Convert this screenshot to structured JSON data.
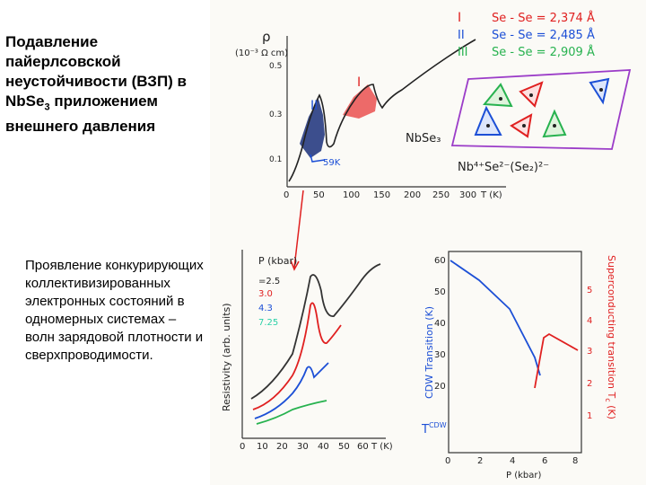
{
  "slide": {
    "title_main": "Подавление пайерлсовской неустойчивости (ВЗП) в NbSe",
    "title_sub": "3",
    "title_tail": " приложением внешнего давления",
    "body": "Проявление конкурирующих коллективизированных электронных состояний в одномерных системах – волн зарядовой плотности и сверхпроводимости."
  },
  "colors": {
    "red": "#e02020",
    "blue": "#1c4fd6",
    "dark": "#222222",
    "green": "#27b24f",
    "cyan": "#2bd0a8",
    "purple": "#9b3cc8",
    "paper": "#fbfaf6"
  },
  "top_figure": {
    "y_label": "ρ",
    "y_unit": "(10⁻³ Ω cm)",
    "y_ticks": [
      "0.5",
      "0.3",
      "0.1"
    ],
    "x_ticks": [
      "0",
      "50",
      "100",
      "150",
      "200",
      "250",
      "300"
    ],
    "x_label": "T (K)",
    "transition_I": "I",
    "transition_II": "II",
    "t_59k": "59K",
    "compound": "NbSe₃",
    "bonds": [
      {
        "roman": "I",
        "text": "Se - Se = 2,374 Å"
      },
      {
        "roman": "II",
        "text": "Se - Se = 2,485 Å"
      },
      {
        "roman": "III",
        "text": "Se - Se = 2,909 Å"
      }
    ],
    "formula": "Nb⁴⁺Se²⁻(Se₂)²⁻"
  },
  "bottom_left": {
    "y_label": "Resistivity (arb. units)",
    "legend_title": "P (kbar)",
    "legend": [
      {
        "label": "=2.5",
        "color": "#222222"
      },
      {
        "label": "3.0",
        "color": "#e02020"
      },
      {
        "label": "4.3",
        "color": "#1c4fd6"
      },
      {
        "label": "7.25",
        "color": "#27b24f"
      }
    ],
    "x_ticks": [
      "0",
      "10",
      "20",
      "30",
      "40",
      "50",
      "60"
    ],
    "x_label": "T (K)"
  },
  "bottom_right": {
    "y_left_label": "CDW Transition (K)",
    "y_left_ticks": [
      "60",
      "50",
      "40",
      "30",
      "20"
    ],
    "t_cdw": "T",
    "t_cdw_sub": "CDW",
    "y_right_label": "Superconducting transition T",
    "y_right_sub": "c",
    "y_right_unit": " (K)",
    "y_right_ticks": [
      "5",
      "4",
      "3",
      "2",
      "1"
    ],
    "x_ticks": [
      "0",
      "2",
      "4",
      "6",
      "8"
    ],
    "x_label": "P (kbar)"
  }
}
